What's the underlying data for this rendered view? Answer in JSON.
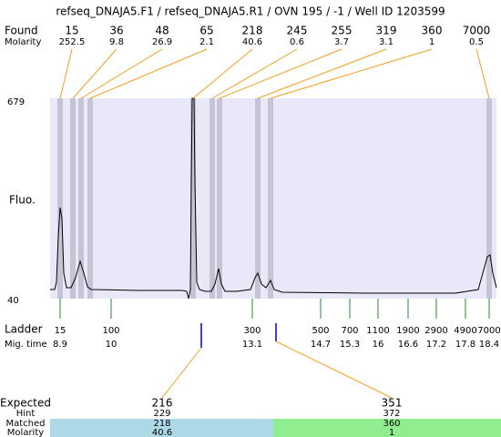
{
  "header": {
    "title": "refseq_DNAJA5.F1 / refseq_DNAJA5.R1 / OVN 195 / -1 / Well ID 1203599"
  },
  "found": {
    "label": "Found",
    "sublabel": "Molarity",
    "peaks": [
      {
        "size": 15,
        "molarity": 252.5
      },
      {
        "size": 36,
        "molarity": 9.8
      },
      {
        "size": 48,
        "molarity": 26.9
      },
      {
        "size": 65,
        "molarity": 2.1
      },
      {
        "size": 218,
        "molarity": 40.6
      },
      {
        "size": 245,
        "molarity": 0.6
      },
      {
        "size": 255,
        "molarity": 3.7
      },
      {
        "size": 319,
        "molarity": 3.1
      },
      {
        "size": 360,
        "molarity": 1
      },
      {
        "size": 7000,
        "molarity": 0.5
      }
    ]
  },
  "plot": {
    "y_label": "Fluo.",
    "y_max": 679,
    "y_min": 40
  },
  "ladder": {
    "label": "Ladder",
    "sublabel": "Mig. time",
    "bands": [
      {
        "size": 15,
        "time": 8.9
      },
      {
        "size": 100,
        "time": 10
      },
      {
        "size": 300,
        "time": 13.1
      },
      {
        "size": 500,
        "time": 14.7
      },
      {
        "size": 700,
        "time": 15.3
      },
      {
        "size": 1100,
        "time": 16
      },
      {
        "size": 1900,
        "time": 16.6
      },
      {
        "size": 2900,
        "time": 17.2
      },
      {
        "size": 4900,
        "time": 17.8
      },
      {
        "size": 7000,
        "time": 18.4
      }
    ]
  },
  "expected": {
    "label": "Expected",
    "hint_label": "Hint",
    "matched_label": "Matched",
    "molarity_label": "Molarity",
    "fragments": [
      {
        "size": 216,
        "hint": 229,
        "matched": 218,
        "molarity": 40.6
      },
      {
        "size": 351,
        "hint": 372,
        "matched": 360,
        "molarity": 1
      }
    ]
  }
}
